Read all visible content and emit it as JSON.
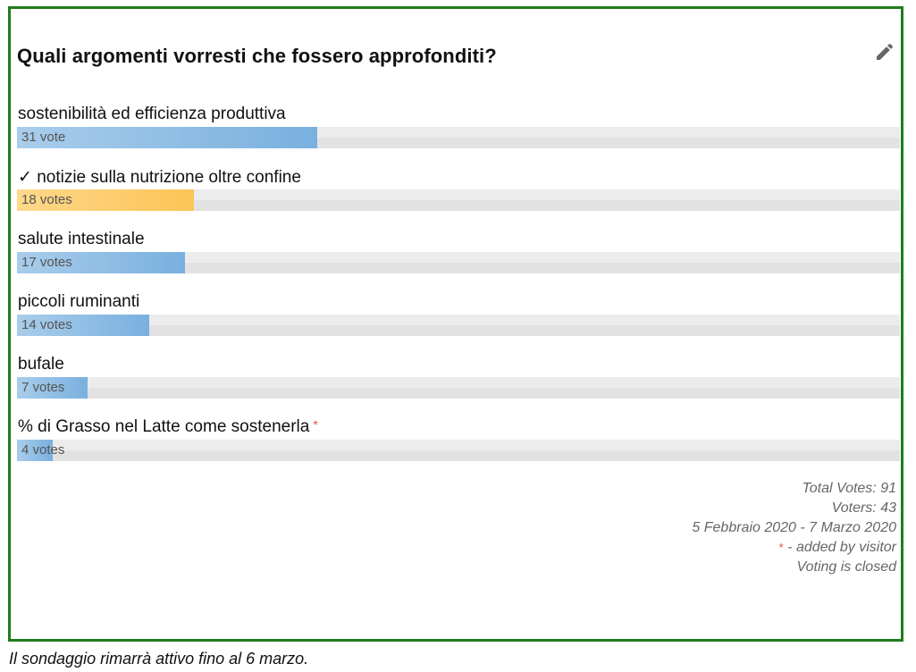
{
  "poll": {
    "question": "Quali argomenti vorresti che fossero approfonditi?",
    "answers": [
      {
        "label": "sostenibilità ed efficienza produttiva",
        "votes_text": "31 vote",
        "votes": 31,
        "bar_fraction": 0.34,
        "color": "#79b0df"
      },
      {
        "label": "✓ notizie sulla nutrizione oltre confine",
        "votes_text": "18 votes",
        "votes": 18,
        "bar_fraction": 0.2,
        "color": "#fbc456"
      },
      {
        "label": "salute intestinale",
        "votes_text": "17 votes",
        "votes": 17,
        "bar_fraction": 0.19,
        "color": "#79b0df"
      },
      {
        "label": "piccoli ruminanti",
        "votes_text": "14 votes",
        "votes": 14,
        "bar_fraction": 0.15,
        "color": "#79b0df"
      },
      {
        "label": "bufale",
        "votes_text": "7 votes",
        "votes": 7,
        "bar_fraction": 0.08,
        "color": "#79b0df"
      },
      {
        "label": "% di Grasso nel Latte come sostenerla",
        "visitor_marker": "*",
        "votes_text": "4 votes",
        "votes": 4,
        "bar_fraction": 0.04,
        "color": "#79b0df"
      }
    ],
    "summary": {
      "total_votes": "Total Votes: 91",
      "voters": "Voters: 43",
      "date_range": "5 Febbraio 2020 - 7 Marzo 2020",
      "visitor_marker": "*",
      "visitor_note": " - added by visitor",
      "status": "Voting is closed"
    }
  },
  "footer": {
    "note": "Il sondaggio rimarrà attivo fino al 6 marzo."
  },
  "colors": {
    "border": "#1e7d1e",
    "bar_blue": "#79b0df",
    "bar_orange": "#fbc456",
    "visitor_star": "#e0542e"
  },
  "icons": {
    "edit": "pencil-icon"
  }
}
